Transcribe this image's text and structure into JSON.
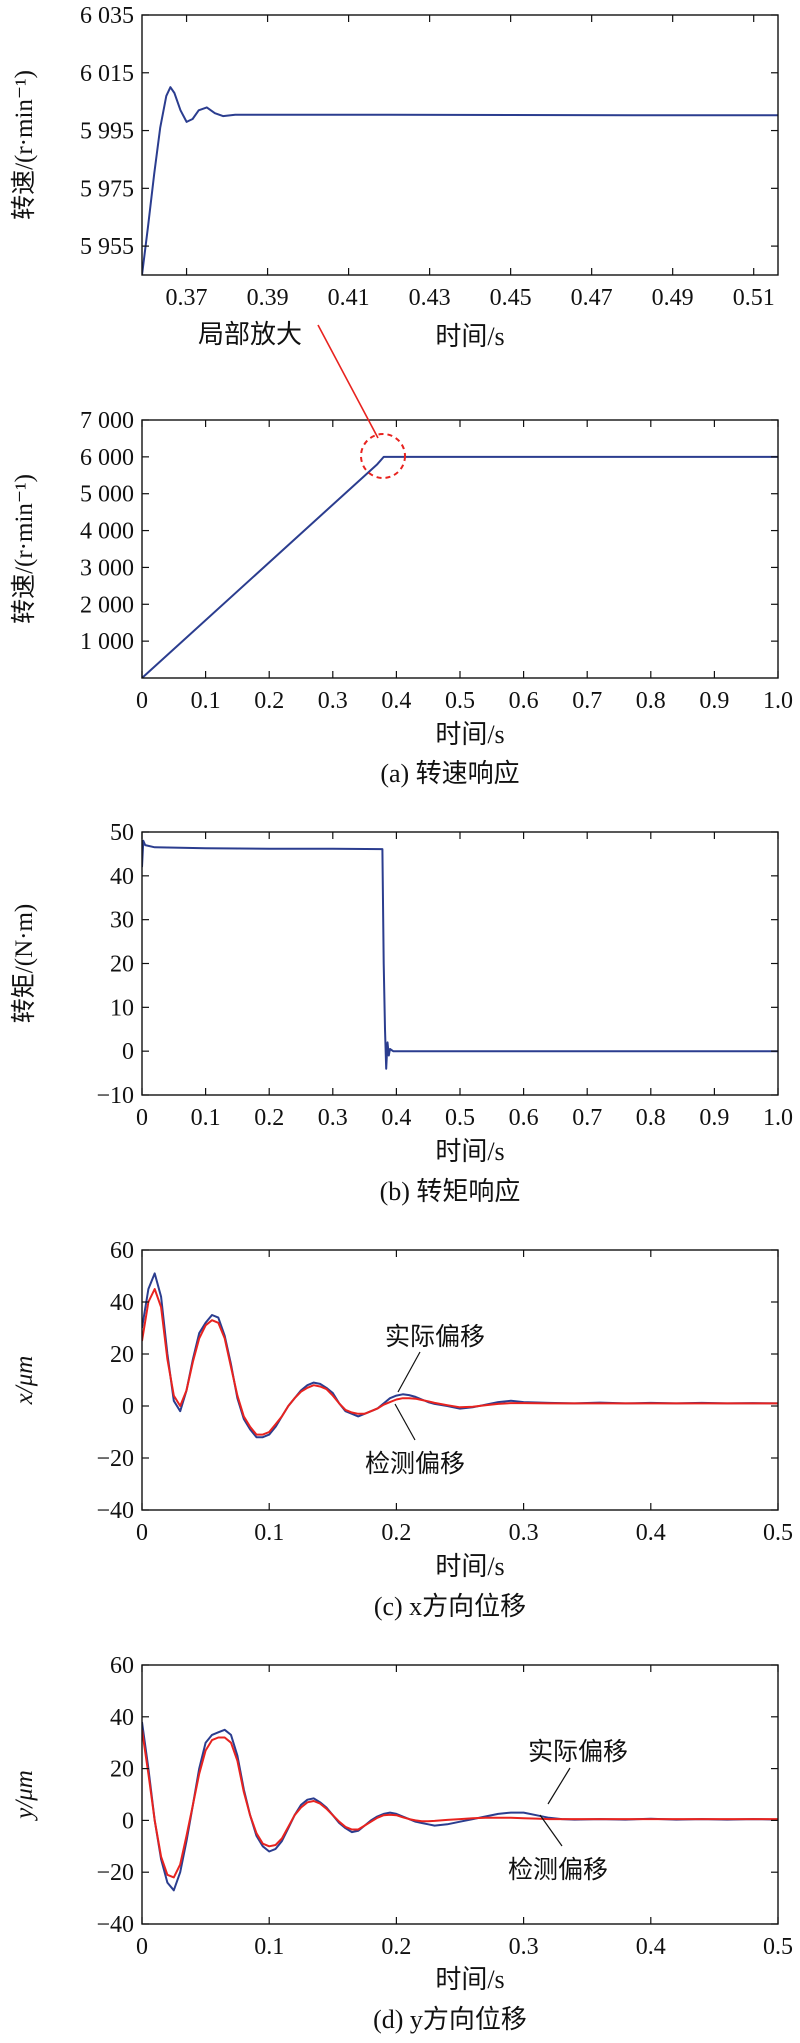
{
  "colors": {
    "blue": "#2b3d8f",
    "red": "#e8231f",
    "axis": "#111111"
  },
  "chart_data": [
    {
      "id": "zoom",
      "type": "line",
      "xlabel": "时间/s",
      "ylabel": "转速/(r·min⁻¹)",
      "xlim": [
        0.359,
        0.516
      ],
      "ylim": [
        5945,
        6035
      ],
      "xticks": [
        0.37,
        0.39,
        0.41,
        0.43,
        0.45,
        0.47,
        0.49,
        0.51
      ],
      "xtick_labels": [
        "0.37",
        "0.39",
        "0.41",
        "0.43",
        "0.45",
        "0.47",
        "0.49",
        "0.51"
      ],
      "yticks": [
        5955,
        5975,
        5995,
        6015,
        6035
      ],
      "ytick_labels": [
        "5 955",
        "5 975",
        "5 995",
        "6 015",
        "6 035"
      ],
      "series": [
        {
          "color": "#2b3d8f",
          "x": [
            0.359,
            0.3605,
            0.362,
            0.3635,
            0.365,
            0.366,
            0.367,
            0.3685,
            0.37,
            0.3715,
            0.373,
            0.375,
            0.377,
            0.379,
            0.382,
            0.39,
            0.42,
            0.45,
            0.48,
            0.516
          ],
          "y": [
            5945,
            5962,
            5980,
            5996,
            6007,
            6010,
            6008,
            6002,
            5998,
            5999,
            6002,
            6003,
            6001,
            6000,
            6000.5,
            6000.5,
            6000.5,
            6000.4,
            6000.3,
            6000.3
          ]
        }
      ],
      "annotation": "局部放大"
    },
    {
      "id": "speed",
      "type": "line",
      "xlabel": "时间/s",
      "ylabel": "转速/(r·min⁻¹)",
      "subtitle": "(a) 转速响应",
      "xlim": [
        0,
        1.0
      ],
      "ylim": [
        0,
        7000
      ],
      "xticks": [
        0,
        0.1,
        0.2,
        0.3,
        0.4,
        0.5,
        0.6,
        0.7,
        0.8,
        0.9,
        1.0
      ],
      "xtick_labels": [
        "0",
        "0.1",
        "0.2",
        "0.3",
        "0.4",
        "0.5",
        "0.6",
        "0.7",
        "0.8",
        "0.9",
        "1.0"
      ],
      "yticks": [
        1000,
        2000,
        3000,
        4000,
        5000,
        6000,
        7000
      ],
      "ytick_labels": [
        "1 000",
        "2 000",
        "3 000",
        "4 000",
        "5 000",
        "6 000",
        "7 000"
      ],
      "series": [
        {
          "color": "#2b3d8f",
          "x": [
            0,
            0.37,
            0.38,
            1.0
          ],
          "y": [
            0,
            5800,
            6000,
            6000
          ]
        }
      ]
    },
    {
      "id": "torque",
      "type": "line",
      "xlabel": "时间/s",
      "ylabel": "转矩/(N·m)",
      "subtitle": "(b) 转矩响应",
      "xlim": [
        0,
        1.0
      ],
      "ylim": [
        -10,
        50
      ],
      "xticks": [
        0,
        0.1,
        0.2,
        0.3,
        0.4,
        0.5,
        0.6,
        0.7,
        0.8,
        0.9,
        1.0
      ],
      "xtick_labels": [
        "0",
        "0.1",
        "0.2",
        "0.3",
        "0.4",
        "0.5",
        "0.6",
        "0.7",
        "0.8",
        "0.9",
        "1.0"
      ],
      "yticks": [
        -10,
        0,
        10,
        20,
        30,
        40,
        50
      ],
      "ytick_labels": [
        "−10",
        "0",
        "10",
        "20",
        "30",
        "40",
        "50"
      ],
      "series": [
        {
          "color": "#2b3d8f",
          "x": [
            0,
            0.002,
            0.005,
            0.02,
            0.1,
            0.2,
            0.3,
            0.378,
            0.38,
            0.382,
            0.384,
            0.386,
            0.388,
            0.39,
            0.395,
            0.4,
            0.5,
            0.6,
            0.7,
            0.8,
            0.9,
            1.0
          ],
          "y": [
            42,
            48,
            47,
            46.5,
            46.3,
            46.2,
            46.2,
            46.1,
            20,
            5,
            -4,
            2,
            -1,
            0.5,
            0,
            0,
            0,
            0,
            0,
            0,
            0,
            0
          ]
        }
      ]
    },
    {
      "id": "xdisp",
      "type": "line",
      "xlabel": "时间/s",
      "ylabel": "x/μm",
      "subtitle": "(c) x方向位移",
      "xlim": [
        0,
        0.5
      ],
      "ylim": [
        -40,
        60
      ],
      "xticks": [
        0,
        0.1,
        0.2,
        0.3,
        0.4,
        0.5
      ],
      "xtick_labels": [
        "0",
        "0.1",
        "0.2",
        "0.3",
        "0.4",
        "0.5"
      ],
      "yticks": [
        -40,
        -20,
        0,
        20,
        40,
        60
      ],
      "ytick_labels": [
        "−40",
        "−20",
        "0",
        "20",
        "40",
        "60"
      ],
      "series": [
        {
          "name": "实际偏移",
          "color": "#2b3d8f",
          "x": [
            0,
            0.005,
            0.01,
            0.015,
            0.02,
            0.025,
            0.03,
            0.035,
            0.04,
            0.045,
            0.05,
            0.055,
            0.06,
            0.065,
            0.07,
            0.075,
            0.08,
            0.085,
            0.09,
            0.095,
            0.1,
            0.105,
            0.11,
            0.115,
            0.12,
            0.125,
            0.13,
            0.135,
            0.14,
            0.145,
            0.15,
            0.155,
            0.16,
            0.165,
            0.17,
            0.175,
            0.18,
            0.185,
            0.19,
            0.195,
            0.2,
            0.205,
            0.21,
            0.215,
            0.22,
            0.225,
            0.23,
            0.24,
            0.25,
            0.26,
            0.27,
            0.28,
            0.29,
            0.3,
            0.32,
            0.34,
            0.36,
            0.38,
            0.4,
            0.42,
            0.44,
            0.46,
            0.48,
            0.5
          ],
          "y": [
            30,
            45,
            51,
            42,
            20,
            2,
            -2,
            6,
            18,
            28,
            32,
            35,
            34,
            27,
            16,
            3,
            -5,
            -9,
            -12,
            -12,
            -11,
            -8,
            -4,
            0,
            3,
            6,
            8,
            9,
            8.5,
            7,
            5,
            1,
            -2,
            -3,
            -4,
            -3,
            -2,
            -1,
            1,
            3,
            4,
            4.5,
            4.2,
            3.5,
            2.5,
            1.5,
            0.8,
            0,
            -1,
            -0.5,
            0.5,
            1.5,
            2,
            1.5,
            1.2,
            1,
            1.3,
            1,
            1.2,
            1,
            1.2,
            1,
            1.1,
            1
          ]
        },
        {
          "name": "检测偏移",
          "color": "#e8231f",
          "x": [
            0,
            0.005,
            0.01,
            0.015,
            0.02,
            0.025,
            0.03,
            0.035,
            0.04,
            0.045,
            0.05,
            0.055,
            0.06,
            0.065,
            0.07,
            0.075,
            0.08,
            0.085,
            0.09,
            0.095,
            0.1,
            0.105,
            0.11,
            0.115,
            0.12,
            0.125,
            0.13,
            0.135,
            0.14,
            0.145,
            0.15,
            0.155,
            0.16,
            0.165,
            0.17,
            0.175,
            0.18,
            0.185,
            0.19,
            0.195,
            0.2,
            0.205,
            0.21,
            0.215,
            0.22,
            0.225,
            0.23,
            0.24,
            0.25,
            0.26,
            0.27,
            0.28,
            0.29,
            0.3,
            0.32,
            0.34,
            0.36,
            0.38,
            0.4,
            0.42,
            0.44,
            0.46,
            0.48,
            0.5
          ],
          "y": [
            25,
            40,
            45,
            38,
            18,
            4,
            0,
            6,
            17,
            26,
            31,
            33,
            32,
            26,
            15,
            4,
            -4,
            -8,
            -11,
            -11,
            -10,
            -7,
            -4,
            0,
            3,
            5.5,
            7,
            8,
            7.5,
            6.5,
            4,
            1,
            -1.5,
            -2.5,
            -3,
            -3,
            -2,
            -1,
            0.5,
            1.5,
            2.5,
            3,
            3,
            2.8,
            2.3,
            1.8,
            1.2,
            0.3,
            -0.5,
            -0.3,
            0.3,
            0.8,
            1.1,
            1.1,
            1,
            1,
            1,
            1,
            1,
            1,
            1,
            1,
            1,
            1
          ]
        }
      ],
      "label_actual": "实际偏移",
      "label_detect": "检测偏移"
    },
    {
      "id": "ydisp",
      "type": "line",
      "xlabel": "时间/s",
      "ylabel": "y/μm",
      "subtitle": "(d) y方向位移",
      "xlim": [
        0,
        0.5
      ],
      "ylim": [
        -40,
        60
      ],
      "xticks": [
        0,
        0.1,
        0.2,
        0.3,
        0.4,
        0.5
      ],
      "xtick_labels": [
        "0",
        "0.1",
        "0.2",
        "0.3",
        "0.4",
        "0.5"
      ],
      "yticks": [
        -40,
        -20,
        0,
        20,
        40,
        60
      ],
      "ytick_labels": [
        "−40",
        "−20",
        "0",
        "20",
        "40",
        "60"
      ],
      "series": [
        {
          "name": "实际偏移",
          "color": "#2b3d8f",
          "x": [
            0,
            0.005,
            0.01,
            0.015,
            0.02,
            0.025,
            0.03,
            0.035,
            0.04,
            0.045,
            0.05,
            0.055,
            0.06,
            0.065,
            0.07,
            0.075,
            0.08,
            0.085,
            0.09,
            0.095,
            0.1,
            0.105,
            0.11,
            0.115,
            0.12,
            0.125,
            0.13,
            0.135,
            0.14,
            0.145,
            0.15,
            0.155,
            0.16,
            0.165,
            0.17,
            0.175,
            0.18,
            0.185,
            0.19,
            0.195,
            0.2,
            0.205,
            0.21,
            0.215,
            0.22,
            0.225,
            0.23,
            0.24,
            0.25,
            0.26,
            0.27,
            0.28,
            0.29,
            0.3,
            0.31,
            0.32,
            0.33,
            0.34,
            0.36,
            0.38,
            0.4,
            0.42,
            0.44,
            0.46,
            0.48,
            0.5
          ],
          "y": [
            38,
            20,
            0,
            -15,
            -24,
            -27,
            -20,
            -8,
            6,
            20,
            30,
            33,
            34,
            35,
            33,
            25,
            12,
            2,
            -6,
            -10,
            -12,
            -11,
            -8,
            -3,
            2,
            6,
            8,
            8.5,
            7,
            5,
            2,
            -1,
            -3,
            -4.5,
            -4,
            -2,
            0,
            1.5,
            2.5,
            3,
            2.5,
            1.5,
            0.5,
            -0.5,
            -1,
            -1.5,
            -2,
            -1.5,
            -0.5,
            0.5,
            1.5,
            2.5,
            3,
            3,
            2,
            1,
            0.5,
            0.3,
            0.5,
            0.3,
            0.6,
            0.3,
            0.5,
            0.3,
            0.5,
            0.3
          ]
        },
        {
          "name": "检测偏移",
          "color": "#e8231f",
          "x": [
            0,
            0.005,
            0.01,
            0.015,
            0.02,
            0.025,
            0.03,
            0.035,
            0.04,
            0.045,
            0.05,
            0.055,
            0.06,
            0.065,
            0.07,
            0.075,
            0.08,
            0.085,
            0.09,
            0.095,
            0.1,
            0.105,
            0.11,
            0.115,
            0.12,
            0.125,
            0.13,
            0.135,
            0.14,
            0.145,
            0.15,
            0.155,
            0.16,
            0.165,
            0.17,
            0.175,
            0.18,
            0.185,
            0.19,
            0.195,
            0.2,
            0.205,
            0.21,
            0.215,
            0.22,
            0.225,
            0.23,
            0.24,
            0.25,
            0.26,
            0.27,
            0.28,
            0.29,
            0.3,
            0.31,
            0.32,
            0.33,
            0.34,
            0.36,
            0.38,
            0.4,
            0.42,
            0.44,
            0.46,
            0.48,
            0.5
          ],
          "y": [
            35,
            18,
            0,
            -14,
            -21,
            -22,
            -17,
            -6,
            6,
            18,
            27,
            31,
            32,
            32,
            30,
            23,
            11,
            2,
            -5,
            -9,
            -10,
            -9.5,
            -7,
            -2.5,
            2,
            5,
            7,
            7.5,
            6.5,
            4.5,
            2,
            -0.5,
            -2.5,
            -3.5,
            -3.5,
            -2,
            -0.5,
            1,
            2,
            2.2,
            2,
            1.2,
            0.5,
            0,
            -0.3,
            -0.3,
            -0.2,
            0.2,
            0.5,
            0.8,
            1,
            1,
            1,
            0.8,
            0.7,
            0.5,
            0.5,
            0.5,
            0.5,
            0.5,
            0.5,
            0.5,
            0.5,
            0.5,
            0.5,
            0.5
          ]
        }
      ],
      "label_actual": "实际偏移",
      "label_detect": "检测偏移"
    }
  ]
}
